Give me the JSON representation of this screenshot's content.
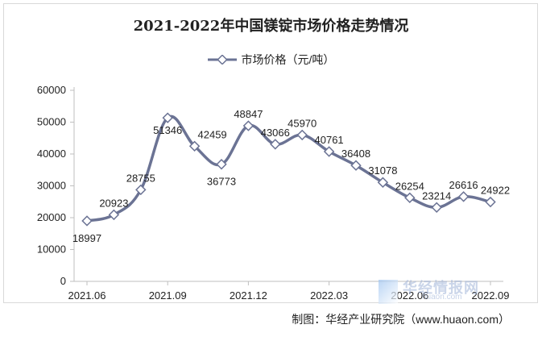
{
  "chart_data": {
    "type": "line",
    "title": "2021-2022年中国镁锭市场价格走势情况",
    "series": [
      {
        "name": "市场价格（元/吨）",
        "color": "#6b7394",
        "values": [
          18997,
          20923,
          28755,
          51346,
          42459,
          36773,
          48847,
          43066,
          45970,
          40761,
          36408,
          31078,
          26254,
          23214,
          26616,
          24922
        ]
      }
    ],
    "x_tick_labels": [
      "2021.06",
      "2021.09",
      "2021.12",
      "2022.03",
      "2022.06",
      "2022.09"
    ],
    "x_tick_indices": [
      0,
      3,
      6,
      9,
      12,
      15
    ],
    "y_ticks": [
      0,
      10000,
      20000,
      30000,
      40000,
      50000,
      60000
    ],
    "ylim": [
      0,
      60000
    ],
    "legend_position": "top-center",
    "grid": false
  },
  "footer": "制图：华经产业研究院（www.huaon.com）",
  "watermark": {
    "name": "华经情报网",
    "url": "huaon.com"
  }
}
